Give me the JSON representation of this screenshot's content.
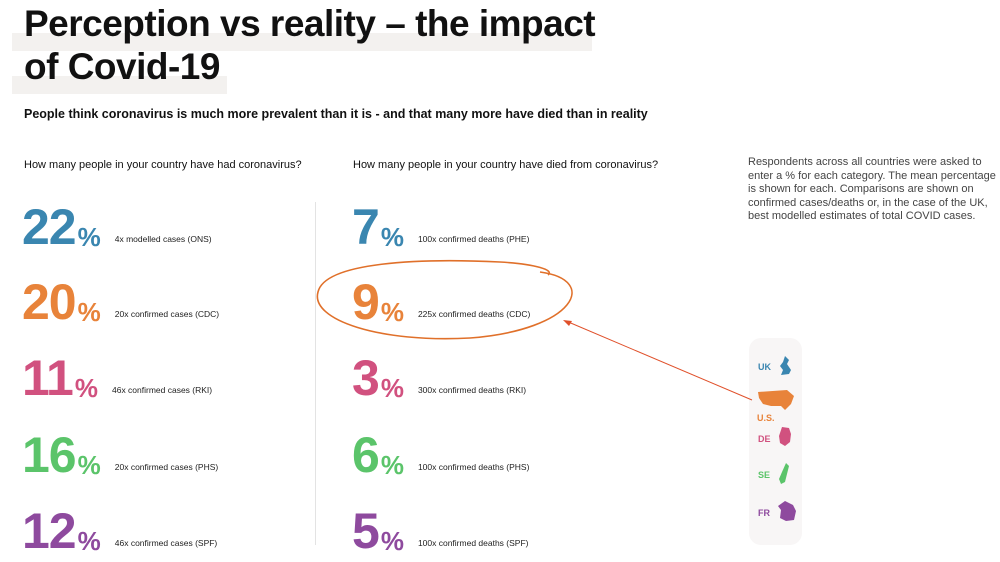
{
  "title": "Perception vs reality – the impact of Covid-19",
  "subtitle": "People think coronavirus is much more prevalent than it is - and that many more have died than in reality",
  "cases": {
    "question": "How many people in your country have had coronavirus?",
    "rows": [
      {
        "value": "22",
        "unit": "%",
        "note": "4x modelled cases (ONS)",
        "color": "#3a86b0"
      },
      {
        "value": "20",
        "unit": "%",
        "note": "20x confirmed cases (CDC)",
        "color": "#e8833a"
      },
      {
        "value": "11",
        "unit": "%",
        "note": "46x confirmed cases (RKI)",
        "color": "#d1517f"
      },
      {
        "value": "16",
        "unit": "%",
        "note": "20x confirmed cases (PHS)",
        "color": "#5bc46a"
      },
      {
        "value": "12",
        "unit": "%",
        "note": "46x confirmed cases (SPF)",
        "color": "#8e4a9e"
      }
    ]
  },
  "deaths": {
    "question": "How many people in your country have died from coronavirus?",
    "rows": [
      {
        "value": "7",
        "unit": "%",
        "note": "100x confirmed deaths (PHE)",
        "color": "#3a86b0"
      },
      {
        "value": "9",
        "unit": "%",
        "note": "225x confirmed deaths (CDC)",
        "color": "#e8833a"
      },
      {
        "value": "3",
        "unit": "%",
        "note": "300x confirmed deaths (RKI)",
        "color": "#d1517f"
      },
      {
        "value": "6",
        "unit": "%",
        "note": "100x confirmed deaths (PHS)",
        "color": "#5bc46a"
      },
      {
        "value": "5",
        "unit": "%",
        "note": "100x confirmed deaths (SPF)",
        "color": "#8e4a9e"
      }
    ]
  },
  "explanation": "Respondents across all countries were asked to enter a % for each category. The mean percentage is shown for each. Comparisons are shown on confirmed cases/deaths or, in the case of the UK, best modelled estimates of total COVID cases.",
  "legend": [
    {
      "label": "UK",
      "color": "#3a86b0"
    },
    {
      "label": "U.S.",
      "color": "#e8833a"
    },
    {
      "label": "DE",
      "color": "#d1517f"
    },
    {
      "label": "SE",
      "color": "#5bc46a"
    },
    {
      "label": "FR",
      "color": "#8e4a9e"
    }
  ],
  "annotation_color": "#e0702a"
}
